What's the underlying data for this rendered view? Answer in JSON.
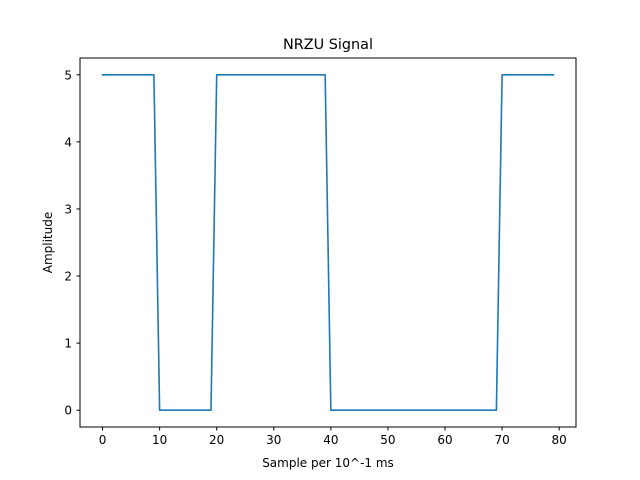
{
  "chart_data": {
    "type": "line",
    "title": "NRZU Signal",
    "xlabel": "Sample per 10^-1 ms",
    "ylabel": "Amplitude",
    "xlim": [
      -3.95,
      82.95
    ],
    "ylim": [
      -0.25,
      5.25
    ],
    "xticks": [
      0,
      10,
      20,
      30,
      40,
      50,
      60,
      70,
      80
    ],
    "yticks": [
      0,
      1,
      2,
      3,
      4,
      5
    ],
    "grid": false,
    "series": [
      {
        "color": "#1f77b4",
        "x": [
          0,
          9,
          10,
          19,
          20,
          39,
          40,
          69,
          70,
          79
        ],
        "y": [
          5,
          5,
          0,
          0,
          5,
          5,
          0,
          0,
          5,
          5
        ]
      }
    ]
  }
}
